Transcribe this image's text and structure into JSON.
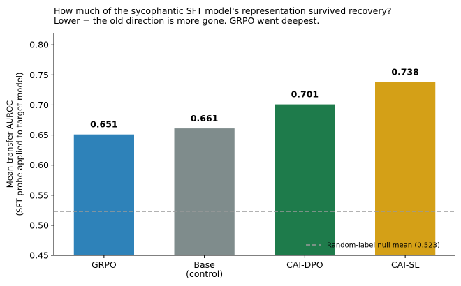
{
  "chart_data": {
    "type": "bar",
    "title": [
      "How much of the sycophantic SFT model's representation survived recovery?",
      "Lower = the old direction is more gone. GRPO went deepest."
    ],
    "ylabel": [
      "Mean transfer AUROC",
      "(SFT probe applied to target model)"
    ],
    "xlabel": "",
    "categories": [
      [
        "GRPO"
      ],
      [
        "Base",
        "(control)"
      ],
      [
        "CAI-DPO"
      ],
      [
        "CAI-SL"
      ]
    ],
    "values": [
      0.651,
      0.661,
      0.701,
      0.738
    ],
    "value_labels": [
      "0.651",
      "0.661",
      "0.701",
      "0.738"
    ],
    "colors": [
      "#2e82b9",
      "#7f8c8c",
      "#1e7b4b",
      "#d4a017"
    ],
    "ylim": [
      0.45,
      0.82
    ],
    "yticks": [
      0.45,
      0.5,
      0.55,
      0.6,
      0.65,
      0.7,
      0.75,
      0.8
    ],
    "ytick_labels": [
      "0.45",
      "0.50",
      "0.55",
      "0.60",
      "0.65",
      "0.70",
      "0.75",
      "0.80"
    ],
    "reference_line": {
      "value": 0.523,
      "label": "Random-label null mean (0.523)",
      "color": "#999999"
    },
    "grid": false,
    "legend_position": "lower-right"
  }
}
